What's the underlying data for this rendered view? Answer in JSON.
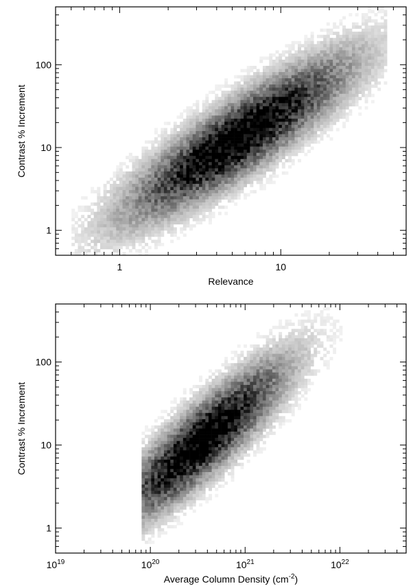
{
  "chart_data": [
    {
      "type": "heatmap",
      "xlabel": "Relevance",
      "ylabel": "Contrast % Increment",
      "xscale": "log",
      "yscale": "log",
      "xlim": [
        0.4,
        60
      ],
      "ylim": [
        0.5,
        500
      ],
      "xticks": [
        {
          "value": 1,
          "label": "1"
        },
        {
          "value": 10,
          "label": "10"
        }
      ],
      "yticks": [
        {
          "value": 1,
          "label": "1"
        },
        {
          "value": 10,
          "label": "10"
        },
        {
          "value": 100,
          "label": "100"
        }
      ],
      "density": {
        "peak": [
          5.5,
          13
        ],
        "x_range": [
          0.5,
          45
        ],
        "y_range": [
          0.7,
          170
        ],
        "trend": "positive correlation, elongated along diagonal"
      }
    },
    {
      "type": "heatmap",
      "xlabel_main": "Average Column Density (cm",
      "xlabel_sup": "-2",
      "xlabel_end": ")",
      "ylabel": "Contrast % Increment",
      "xscale": "log",
      "yscale": "log",
      "xlim": [
        1e+19,
        5e+22
      ],
      "ylim": [
        0.5,
        500
      ],
      "xticks": [
        {
          "value": 1e+19,
          "base": "10",
          "exp": "19"
        },
        {
          "value": 1e+20,
          "base": "10",
          "exp": "20"
        },
        {
          "value": 1e+21,
          "base": "10",
          "exp": "21"
        },
        {
          "value": 1e+22,
          "base": "10",
          "exp": "22"
        }
      ],
      "yticks": [
        {
          "value": 1,
          "label": "1"
        },
        {
          "value": 10,
          "label": "10"
        },
        {
          "value": 100,
          "label": "100"
        }
      ],
      "density": {
        "peak": [
          3.5e+20,
          11
        ],
        "x_range": [
          8e+19,
          2.5e+22
        ],
        "y_range": [
          0.7,
          160
        ],
        "trend": "positive correlation, elongated along diagonal"
      }
    }
  ]
}
